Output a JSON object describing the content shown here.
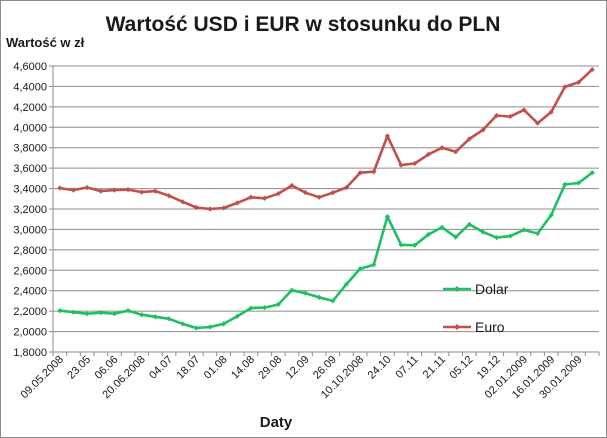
{
  "chart_data": {
    "type": "line",
    "title": "Wartość USD i EUR w stosunku do PLN",
    "xlabel": "Daty",
    "ylabel": "Wartość w zł",
    "ylim": [
      1.8,
      4.6
    ],
    "yticks": [
      "1,8000",
      "2,0000",
      "2,2000",
      "2,4000",
      "2,6000",
      "2,8000",
      "3,0000",
      "3,2000",
      "3,4000",
      "3,6000",
      "3,8000",
      "4,0000",
      "4,2000",
      "4,4000",
      "4,6000"
    ],
    "categories": [
      "09.05.2008",
      "",
      "23.05",
      "",
      "06.06",
      "",
      "20.06.2008",
      "",
      "04.07",
      "",
      "18.07",
      "",
      "01.08",
      "",
      "14.08",
      "",
      "29.08",
      "",
      "12.09",
      "",
      "26.09",
      "",
      "10.10.2008",
      "",
      "24.10",
      "",
      "07.11",
      "",
      "21.11",
      "",
      "05.12",
      "",
      "19.12",
      "",
      "02.01.2009",
      "",
      "16.01.2009",
      "",
      "30.01.2009",
      ""
    ],
    "grid": true,
    "series": [
      {
        "name": "Euro",
        "color": "#c0504d",
        "values": [
          3.405,
          3.385,
          3.41,
          3.375,
          3.385,
          3.39,
          3.365,
          3.375,
          3.33,
          3.27,
          3.215,
          3.2,
          3.21,
          3.26,
          3.315,
          3.305,
          3.35,
          3.43,
          3.36,
          3.315,
          3.36,
          3.41,
          3.555,
          3.565,
          3.915,
          3.63,
          3.645,
          3.735,
          3.8,
          3.76,
          3.885,
          3.975,
          4.115,
          4.105,
          4.17,
          4.04,
          4.15,
          4.395,
          4.44,
          4.565
        ]
      },
      {
        "name": "Dolar",
        "color": "#1fbf63",
        "values": [
          2.205,
          2.19,
          2.175,
          2.185,
          2.175,
          2.205,
          2.165,
          2.145,
          2.125,
          2.075,
          2.035,
          2.045,
          2.075,
          2.15,
          2.23,
          2.235,
          2.265,
          2.405,
          2.375,
          2.335,
          2.3,
          2.465,
          2.615,
          2.655,
          3.125,
          2.85,
          2.845,
          2.95,
          3.02,
          2.925,
          3.05,
          2.975,
          2.92,
          2.935,
          2.995,
          2.96,
          3.14,
          3.44,
          3.455,
          3.555
        ]
      }
    ],
    "legend": {
      "placement": "right-inside",
      "order": [
        "Dolar",
        "Euro"
      ]
    }
  }
}
